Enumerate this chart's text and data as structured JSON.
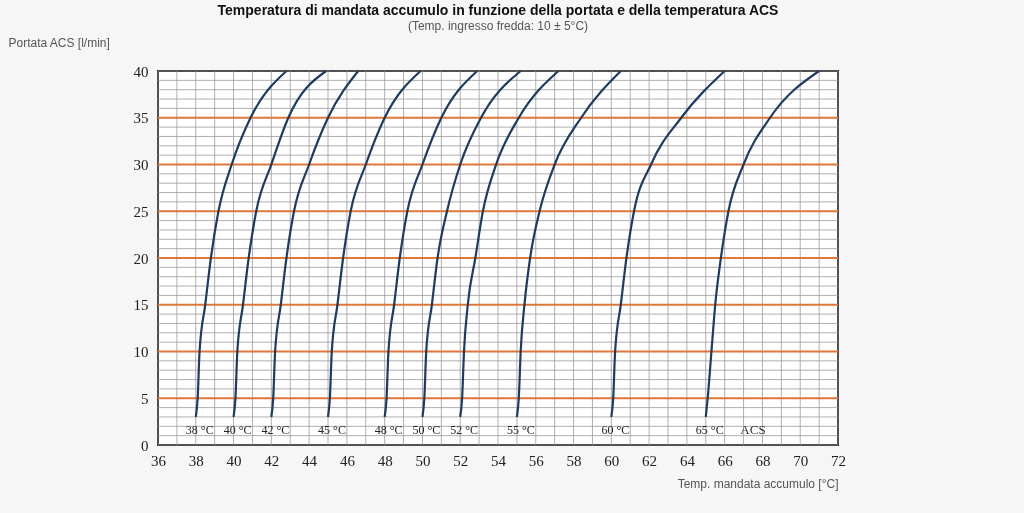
{
  "chart_data": {
    "type": "line",
    "title": "Temperatura di mandata accumulo in funzione della portata e della temperatura ACS",
    "subtitle": "(Temp. ingresso fredda: 10 ± 5°C)",
    "xlabel": "Temp. mandata accumulo [°C]",
    "ylabel": "Portata ACS [l/min]",
    "xlim": [
      36,
      72
    ],
    "ylim": [
      0,
      40
    ],
    "xticks": [
      36,
      {
        "value": 37,
        "label": null
      },
      38,
      {
        "value": 39,
        "label": null
      },
      40,
      {
        "value": 41,
        "label": null
      },
      42,
      {
        "value": 43,
        "label": null
      },
      44,
      {
        "value": 45,
        "label": null
      },
      46,
      {
        "value": 47,
        "label": null
      },
      48,
      {
        "value": 49,
        "label": null
      },
      50,
      {
        "value": 51,
        "label": null
      },
      52,
      {
        "value": 53,
        "label": null
      },
      54,
      {
        "value": 55,
        "label": null
      },
      56,
      {
        "value": 57,
        "label": null
      },
      58,
      {
        "value": 59,
        "label": null
      },
      60,
      {
        "value": 61,
        "label": null
      },
      62,
      {
        "value": 63,
        "label": null
      },
      64,
      {
        "value": 65,
        "label": null
      },
      66,
      {
        "value": 67,
        "label": null
      },
      68,
      {
        "value": 69,
        "label": null
      },
      70,
      {
        "value": 71,
        "label": null
      },
      72
    ],
    "yticks": [
      0,
      {
        "value": 1,
        "label": null
      },
      {
        "value": 2,
        "label": null
      },
      {
        "value": 3,
        "label": null
      },
      {
        "value": 4,
        "label": null
      },
      5,
      {
        "value": 6,
        "label": null
      },
      {
        "value": 7,
        "label": null
      },
      {
        "value": 8,
        "label": null
      },
      {
        "value": 9,
        "label": null
      },
      10,
      {
        "value": 11,
        "label": null
      },
      {
        "value": 12,
        "label": null
      },
      {
        "value": 13,
        "label": null
      },
      {
        "value": 14,
        "label": null
      },
      15,
      {
        "value": 16,
        "label": null
      },
      {
        "value": 17,
        "label": null
      },
      {
        "value": 18,
        "label": null
      },
      {
        "value": 19,
        "label": null
      },
      20,
      {
        "value": 21,
        "label": null
      },
      {
        "value": 22,
        "label": null
      },
      {
        "value": 23,
        "label": null
      },
      {
        "value": 24,
        "label": null
      },
      25,
      {
        "value": 26,
        "label": null
      },
      {
        "value": 27,
        "label": null
      },
      {
        "value": 28,
        "label": null
      },
      {
        "value": 29,
        "label": null
      },
      30,
      {
        "value": 31,
        "label": null
      },
      {
        "value": 32,
        "label": null
      },
      {
        "value": 33,
        "label": null
      },
      {
        "value": 34,
        "label": null
      },
      35,
      {
        "value": 36,
        "label": null
      },
      {
        "value": 37,
        "label": null
      },
      {
        "value": 38,
        "label": null
      },
      {
        "value": 39,
        "label": null
      },
      40
    ],
    "grid": true,
    "annotations": [
      "ACS"
    ],
    "series": [
      {
        "name": "38 °C",
        "color": "#1d3b63",
        "x": [
          38,
          38.1,
          38.2,
          38.5,
          38.8,
          39.2,
          39.9,
          40.9,
          42.8
        ],
        "values": [
          3,
          5,
          10,
          15,
          20,
          25,
          30,
          35,
          40
        ]
      },
      {
        "name": "40 °C",
        "color": "#1d3b63",
        "x": [
          40,
          40.1,
          40.2,
          40.5,
          40.8,
          41.2,
          42,
          42.9,
          44.9
        ],
        "values": [
          3,
          5,
          10,
          15,
          20,
          25,
          30,
          35,
          40
        ]
      },
      {
        "name": "42 °C",
        "color": "#1d3b63",
        "x": [
          42,
          42.1,
          42.2,
          42.5,
          42.8,
          43.2,
          44,
          45,
          46.6
        ],
        "values": [
          3,
          5,
          10,
          15,
          20,
          25,
          30,
          35,
          40
        ]
      },
      {
        "name": "45 °C",
        "color": "#1d3b63",
        "x": [
          45,
          45.1,
          45.2,
          45.5,
          45.8,
          46.2,
          47,
          48,
          49.9
        ],
        "values": [
          3,
          5,
          10,
          15,
          20,
          25,
          30,
          35,
          40
        ]
      },
      {
        "name": "48 °C",
        "color": "#1d3b63",
        "x": [
          48,
          48.1,
          48.2,
          48.5,
          48.8,
          49.2,
          50,
          51,
          52.9
        ],
        "values": [
          3,
          5,
          10,
          15,
          20,
          25,
          30,
          35,
          40
        ]
      },
      {
        "name": "50 °C",
        "color": "#1d3b63",
        "x": [
          50,
          50.1,
          50.2,
          50.5,
          50.8,
          51.3,
          52,
          53.1,
          55.2
        ],
        "values": [
          3,
          5,
          10,
          15,
          20,
          25,
          30,
          35,
          40
        ]
      },
      {
        "name": "52 °C",
        "color": "#1d3b63",
        "x": [
          52,
          52.1,
          52.2,
          52.4,
          52.8,
          53.2,
          53.9,
          55.1,
          57.2
        ],
        "values": [
          3,
          5,
          10,
          15,
          20,
          25,
          30,
          35,
          40
        ]
      },
      {
        "name": "55 °C",
        "color": "#1d3b63",
        "x": [
          55,
          55.1,
          55.2,
          55.4,
          55.7,
          56.2,
          57,
          58.4,
          60.5
        ],
        "values": [
          3,
          5,
          10,
          15,
          20,
          25,
          30,
          35,
          40
        ]
      },
      {
        "name": "60 °C",
        "color": "#1d3b63",
        "x": [
          60,
          60.1,
          60.2,
          60.5,
          60.8,
          61.2,
          62.1,
          63.7,
          66
        ],
        "values": [
          3,
          5,
          10,
          15,
          20,
          25,
          30,
          35,
          40
        ]
      },
      {
        "name": "65 °C",
        "color": "#1d3b63",
        "x": [
          65,
          65.1,
          65.3,
          65.5,
          65.8,
          66.2,
          67,
          68.4,
          71
        ],
        "values": [
          3,
          5,
          10,
          15,
          20,
          25,
          30,
          35,
          40
        ]
      }
    ]
  }
}
